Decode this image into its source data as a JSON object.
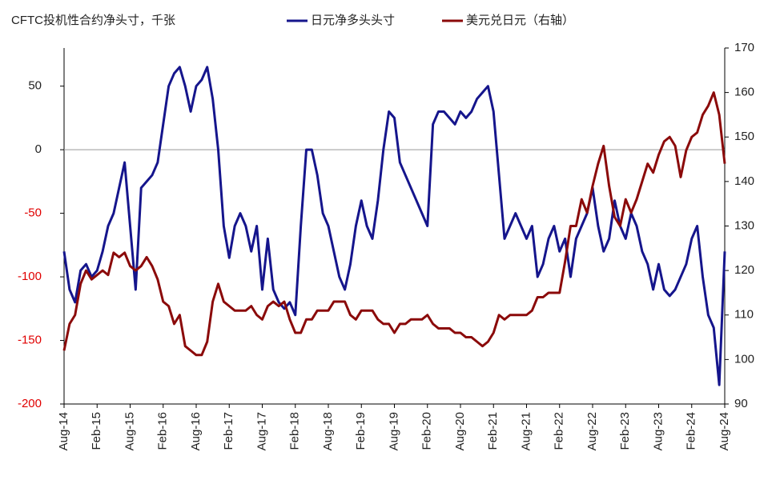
{
  "chart_data": {
    "type": "line",
    "title": "CFTC投机性合约净头寸，千张",
    "x": [
      "2014-08",
      "2014-09",
      "2014-10",
      "2014-11",
      "2014-12",
      "2015-01",
      "2015-02",
      "2015-03",
      "2015-04",
      "2015-05",
      "2015-06",
      "2015-07",
      "2015-08",
      "2015-09",
      "2015-10",
      "2015-11",
      "2015-12",
      "2016-01",
      "2016-02",
      "2016-03",
      "2016-04",
      "2016-05",
      "2016-06",
      "2016-07",
      "2016-08",
      "2016-09",
      "2016-10",
      "2016-11",
      "2016-12",
      "2017-01",
      "2017-02",
      "2017-03",
      "2017-04",
      "2017-05",
      "2017-06",
      "2017-07",
      "2017-08",
      "2017-09",
      "2017-10",
      "2017-11",
      "2017-12",
      "2018-01",
      "2018-02",
      "2018-03",
      "2018-04",
      "2018-05",
      "2018-06",
      "2018-07",
      "2018-08",
      "2018-09",
      "2018-10",
      "2018-11",
      "2018-12",
      "2019-01",
      "2019-02",
      "2019-03",
      "2019-04",
      "2019-05",
      "2019-06",
      "2019-07",
      "2019-08",
      "2019-09",
      "2019-10",
      "2019-11",
      "2019-12",
      "2020-01",
      "2020-02",
      "2020-03",
      "2020-04",
      "2020-05",
      "2020-06",
      "2020-07",
      "2020-08",
      "2020-09",
      "2020-10",
      "2020-11",
      "2020-12",
      "2021-01",
      "2021-02",
      "2021-03",
      "2021-04",
      "2021-05",
      "2021-06",
      "2021-07",
      "2021-08",
      "2021-09",
      "2021-10",
      "2021-11",
      "2021-12",
      "2022-01",
      "2022-02",
      "2022-03",
      "2022-04",
      "2022-05",
      "2022-06",
      "2022-07",
      "2022-08",
      "2022-09",
      "2022-10",
      "2022-11",
      "2022-12",
      "2023-01",
      "2023-02",
      "2023-03",
      "2023-04",
      "2023-05",
      "2023-06",
      "2023-07",
      "2023-08",
      "2023-09",
      "2023-10",
      "2023-11",
      "2023-12",
      "2024-01",
      "2024-02",
      "2024-03",
      "2024-04",
      "2024-05",
      "2024-06",
      "2024-07",
      "2024-08"
    ],
    "xlim": [
      "2014-08",
      "2024-08"
    ],
    "xticks": [
      {
        "value": "2014-08",
        "label": "Aug-14"
      },
      {
        "value": "2015-02",
        "label": "Feb-15"
      },
      {
        "value": "2015-08",
        "label": "Aug-15"
      },
      {
        "value": "2016-02",
        "label": "Feb-16"
      },
      {
        "value": "2016-08",
        "label": "Aug-16"
      },
      {
        "value": "2017-02",
        "label": "Feb-17"
      },
      {
        "value": "2017-08",
        "label": "Aug-17"
      },
      {
        "value": "2018-02",
        "label": "Feb-18"
      },
      {
        "value": "2018-08",
        "label": "Aug-18"
      },
      {
        "value": "2019-02",
        "label": "Feb-19"
      },
      {
        "value": "2019-08",
        "label": "Aug-19"
      },
      {
        "value": "2020-02",
        "label": "Feb-20"
      },
      {
        "value": "2020-08",
        "label": "Aug-20"
      },
      {
        "value": "2021-02",
        "label": "Feb-21"
      },
      {
        "value": "2021-08",
        "label": "Aug-21"
      },
      {
        "value": "2022-02",
        "label": "Feb-22"
      },
      {
        "value": "2022-08",
        "label": "Aug-22"
      },
      {
        "value": "2023-02",
        "label": "Feb-23"
      },
      {
        "value": "2023-08",
        "label": "Aug-23"
      },
      {
        "value": "2024-02",
        "label": "Feb-24"
      },
      {
        "value": "2024-08",
        "label": "Aug-24"
      }
    ],
    "ylim": [
      -200,
      80
    ],
    "yticks": [
      -200,
      -150,
      -100,
      -50,
      0,
      50
    ],
    "negative_tick_color": "#e00000",
    "zero_line": true,
    "y2lim": [
      90,
      170
    ],
    "y2ticks": [
      90,
      100,
      110,
      120,
      130,
      140,
      150,
      160,
      170
    ],
    "series": [
      {
        "name": "日元净多头头寸",
        "color": "#15158c",
        "values": [
          -80,
          -110,
          -120,
          -95,
          -90,
          -100,
          -95,
          -80,
          -60,
          -50,
          -30,
          -10,
          -60,
          -110,
          -30,
          -25,
          -20,
          -10,
          20,
          50,
          60,
          65,
          50,
          30,
          50,
          55,
          65,
          40,
          0,
          -60,
          -85,
          -60,
          -50,
          -60,
          -80,
          -60,
          -110,
          -70,
          -110,
          -120,
          -125,
          -120,
          -130,
          -60,
          0,
          0,
          -20,
          -50,
          -60,
          -80,
          -100,
          -110,
          -90,
          -60,
          -40,
          -60,
          -70,
          -40,
          0,
          30,
          25,
          -10,
          -20,
          -30,
          -40,
          -50,
          -60,
          20,
          30,
          30,
          25,
          20,
          30,
          25,
          30,
          40,
          45,
          50,
          30,
          -20,
          -70,
          -60,
          -50,
          -60,
          -70,
          -60,
          -100,
          -90,
          -70,
          -60,
          -80,
          -70,
          -100,
          -70,
          -60,
          -50,
          -30,
          -60,
          -80,
          -70,
          -40,
          -60,
          -70,
          -50,
          -60,
          -80,
          -90,
          -110,
          -90,
          -110,
          -115,
          -110,
          -100,
          -90,
          -70,
          -60,
          -100,
          -130,
          -140,
          -185,
          -80
        ]
      },
      {
        "name": "美元兑日元（右轴）",
        "color": "#8b0a0a",
        "axis": "y2",
        "values": [
          102,
          108,
          110,
          117,
          120,
          118,
          119,
          120,
          119,
          124,
          123,
          124,
          121,
          120,
          121,
          123,
          121,
          118,
          113,
          112,
          108,
          110,
          103,
          102,
          101,
          101,
          104,
          113,
          117,
          113,
          112,
          111,
          111,
          111,
          112,
          110,
          109,
          112,
          113,
          112,
          113,
          109,
          106,
          106,
          109,
          109,
          111,
          111,
          111,
          113,
          113,
          113,
          110,
          109,
          111,
          111,
          111,
          109,
          108,
          108,
          106,
          108,
          108,
          109,
          109,
          109,
          110,
          108,
          107,
          107,
          107,
          106,
          106,
          105,
          105,
          104,
          103,
          104,
          106,
          110,
          109,
          110,
          110,
          110,
          110,
          111,
          114,
          114,
          115,
          115,
          115,
          122,
          130,
          130,
          136,
          133,
          139,
          144,
          148,
          139,
          132,
          130,
          136,
          133,
          136,
          140,
          144,
          142,
          146,
          149,
          150,
          148,
          141,
          147,
          150,
          151,
          155,
          157,
          160,
          155,
          144
        ]
      }
    ]
  }
}
